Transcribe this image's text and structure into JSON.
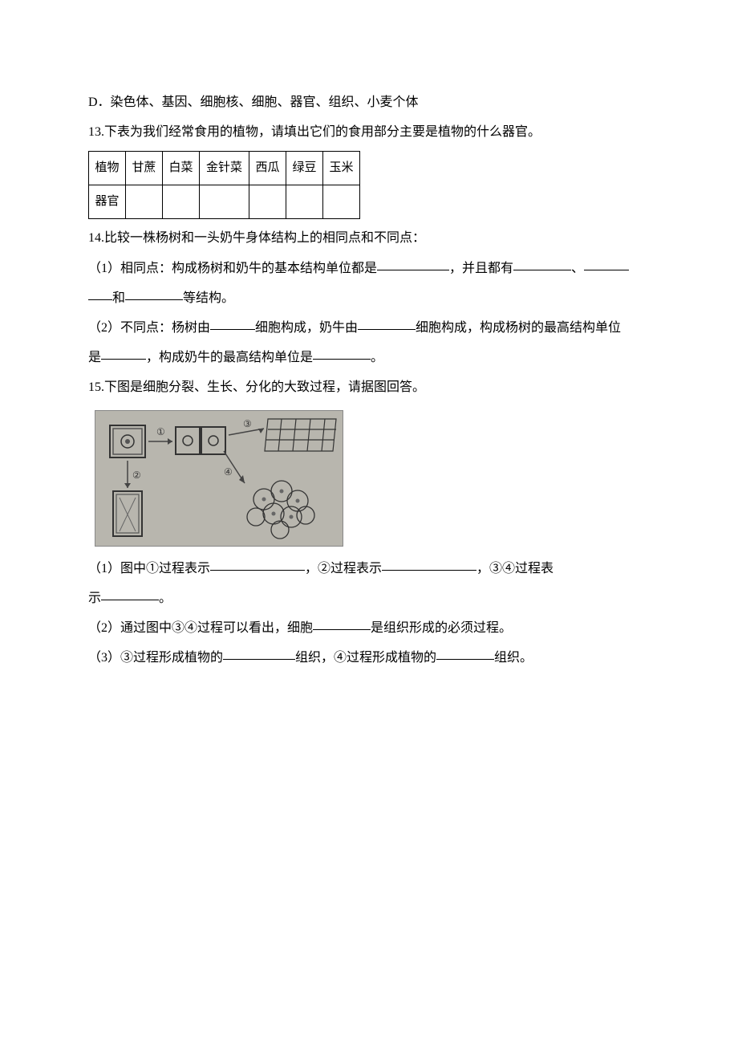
{
  "q12": {
    "option_d": "D．染色体、基因、细胞核、细胞、器官、组织、小麦个体"
  },
  "q13": {
    "prompt": "13.下表为我们经常食用的植物，请填出它们的食用部分主要是植物的什么器官。",
    "row1_label": "植物",
    "row2_label": "器官",
    "cols": [
      "甘蔗",
      "白菜",
      "金针菜",
      "西瓜",
      "绿豆",
      "玉米"
    ]
  },
  "q14": {
    "prompt": "14.比较一株杨树和一头奶牛身体结构上的相同点和不同点：",
    "p1_a": "（1）相同点：构成杨树和奶牛的基本结构单位都是",
    "p1_b": "，并且都有",
    "p1_c": "、",
    "p1_d": "和",
    "p1_e": "等结构。",
    "p2_a": "（2）不同点：杨树由",
    "p2_b": "细胞构成，奶牛由",
    "p2_c": "细胞构成，构成杨树的最高结构单位",
    "p2_d": "是",
    "p2_e": "，构成奶牛的最高结构单位是",
    "p2_f": "。"
  },
  "q15": {
    "prompt": "15.下图是细胞分裂、生长、分化的大致过程，请据图回答。",
    "p1_a": "（1）图中①过程表示",
    "p1_b": "，②过程表示",
    "p1_c": "，③④过程表",
    "p1_d": "示",
    "p1_e": "。",
    "p2_a": "（2）通过图中③④过程可以看出，细胞",
    "p2_b": "是组织形成的必须过程。",
    "p3_a": "（3）③过程形成植物的",
    "p3_b": "组织，④过程形成植物的",
    "p3_c": "组织。",
    "fig_labels": {
      "l1": "①",
      "l2": "②",
      "l3": "③",
      "l4": "④"
    }
  },
  "style": {
    "blank_short": 56,
    "blank_med": 72,
    "blank_long": 90,
    "blank_xlong": 118,
    "fig_bg": "#b8b6ae",
    "text_color": "#000000",
    "page_bg": "#ffffff"
  }
}
